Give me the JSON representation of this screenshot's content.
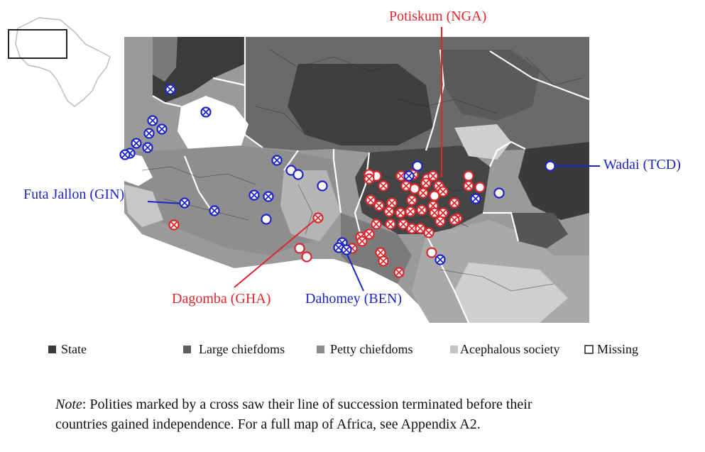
{
  "labels": {
    "potiskum": "Potiskum (NGA)",
    "wadai": "Wadai (TCD)",
    "futa_jallon": "Futa Jallon (GIN)",
    "dagomba": "Dagomba (GHA)",
    "dahomey": "Dahomey (BEN)"
  },
  "legend": [
    {
      "label": "State",
      "color": "#3a3a3a"
    },
    {
      "label": "Large chiefdoms",
      "color": "#5e5e5e"
    },
    {
      "label": "Petty chiefdoms",
      "color": "#8c8c8c"
    },
    {
      "label": "Acephalous society",
      "color": "#c4c4c4"
    },
    {
      "label": "Missing",
      "color": "#ffffff"
    }
  ],
  "note": {
    "prefix": "Note",
    "text1": ": Polities marked by a cross saw their line of succession terminated before their",
    "text2": "countries gained independence. For a full map of Africa, see Appendix A2."
  },
  "colors": {
    "red_marker": "#e0262b",
    "blue_marker": "#1d24c9"
  },
  "markers": {
    "blue_crossed": [
      [
        240,
        126
      ],
      [
        290,
        158
      ],
      [
        215,
        170
      ],
      [
        228,
        182
      ],
      [
        210,
        188
      ],
      [
        192,
        202
      ],
      [
        208,
        208
      ],
      [
        183,
        216
      ],
      [
        176,
        218
      ],
      [
        390,
        226
      ],
      [
        576,
        248
      ],
      [
        670,
        280
      ],
      [
        358,
        275
      ],
      [
        378,
        277
      ],
      [
        260,
        286
      ],
      [
        302,
        297
      ],
      [
        482,
        342
      ],
      [
        477,
        349
      ],
      [
        488,
        352
      ],
      [
        620,
        366
      ]
    ],
    "blue_open": [
      [
        775,
        234
      ],
      [
        588,
        234
      ],
      [
        410,
        240
      ],
      [
        420,
        246
      ],
      [
        454,
        262
      ],
      [
        703,
        272
      ],
      [
        375,
        309
      ]
    ],
    "red_crossed": [
      [
        245,
        317
      ],
      [
        448,
        307
      ],
      [
        520,
        252
      ],
      [
        540,
        262
      ],
      [
        565,
        248
      ],
      [
        582,
        246
      ],
      [
        610,
        248
      ],
      [
        572,
        262
      ],
      [
        600,
        258
      ],
      [
        618,
        262
      ],
      [
        596,
        272
      ],
      [
        624,
        270
      ],
      [
        522,
        282
      ],
      [
        534,
        290
      ],
      [
        552,
        286
      ],
      [
        580,
        282
      ],
      [
        610,
        290
      ],
      [
        640,
        286
      ],
      [
        548,
        298
      ],
      [
        564,
        300
      ],
      [
        578,
        298
      ],
      [
        594,
        296
      ],
      [
        612,
        300
      ],
      [
        624,
        300
      ],
      [
        644,
        308
      ],
      [
        508,
        334
      ],
      [
        520,
        330
      ],
      [
        530,
        316
      ],
      [
        550,
        316
      ],
      [
        568,
        316
      ],
      [
        580,
        322
      ],
      [
        592,
        322
      ],
      [
        604,
        328
      ],
      [
        620,
        312
      ],
      [
        640,
        310
      ],
      [
        536,
        356
      ],
      [
        540,
        368
      ],
      [
        562,
        384
      ],
      [
        496,
        350
      ],
      [
        510,
        340
      ],
      [
        660,
        262
      ]
    ],
    "red_open": [
      [
        530,
        248
      ],
      [
        602,
        252
      ],
      [
        584,
        266
      ],
      [
        612,
        276
      ],
      [
        660,
        248
      ],
      [
        676,
        264
      ],
      [
        422,
        350
      ],
      [
        432,
        362
      ],
      [
        608,
        356
      ],
      [
        520,
        246
      ]
    ]
  }
}
